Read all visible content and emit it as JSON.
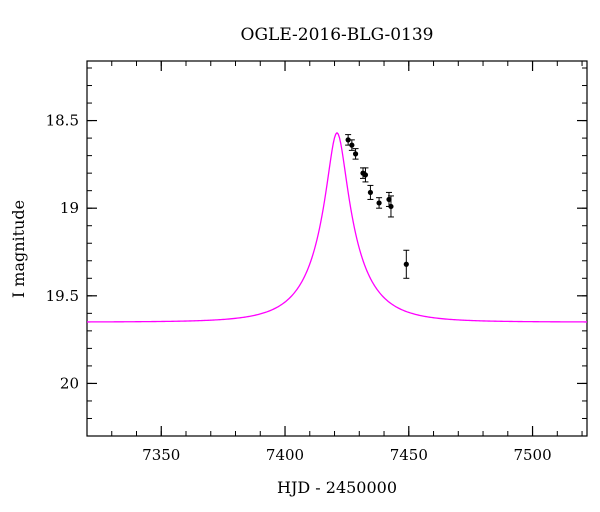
{
  "chart_data": {
    "type": "scatter",
    "title": "OGLE-2016-BLG-0139",
    "xlabel": "HJD - 2450000",
    "ylabel": "I magnitude",
    "xlim": [
      7320,
      7522
    ],
    "ylim": [
      20.3,
      18.16
    ],
    "y_inverted": true,
    "x_ticks": [
      {
        "value": 7350,
        "label": "7350"
      },
      {
        "value": 7400,
        "label": "7400"
      },
      {
        "value": 7450,
        "label": "7450"
      },
      {
        "value": 7500,
        "label": "7500"
      }
    ],
    "y_ticks": [
      {
        "value": 18.5,
        "label": "18.5"
      },
      {
        "value": 19.0,
        "label": "19"
      },
      {
        "value": 19.5,
        "label": "19.5"
      },
      {
        "value": 20.0,
        "label": "20"
      }
    ],
    "x_minor_step": 10,
    "y_minor_step": 0.1,
    "grid": false,
    "legend": "none",
    "series": [
      {
        "type": "line",
        "color": "#ff00ff",
        "model": {
          "peak_time": 7421,
          "peak_mag": 18.57,
          "baseline_mag": 19.65,
          "u0": 0.2,
          "tE": 19
        }
      },
      {
        "type": "scatter_errorbars",
        "color": "#000000",
        "points": [
          {
            "x": 7425.5,
            "y": 18.61,
            "err": 0.03
          },
          {
            "x": 7427.0,
            "y": 18.64,
            "err": 0.03
          },
          {
            "x": 7428.5,
            "y": 18.69,
            "err": 0.03
          },
          {
            "x": 7431.5,
            "y": 18.8,
            "err": 0.03
          },
          {
            "x": 7432.5,
            "y": 18.81,
            "err": 0.04
          },
          {
            "x": 7434.5,
            "y": 18.91,
            "err": 0.04
          },
          {
            "x": 7438.0,
            "y": 18.97,
            "err": 0.03
          },
          {
            "x": 7442.0,
            "y": 18.95,
            "err": 0.04
          },
          {
            "x": 7442.8,
            "y": 18.99,
            "err": 0.06
          },
          {
            "x": 7449.0,
            "y": 19.32,
            "err": 0.08
          }
        ]
      }
    ]
  }
}
